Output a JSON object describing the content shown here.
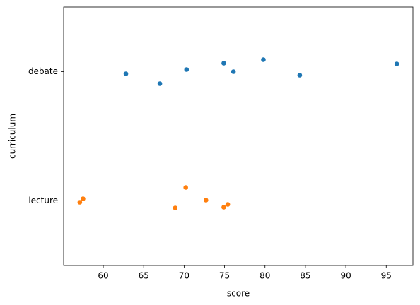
{
  "chart_data": {
    "type": "strip",
    "xlabel": "score",
    "ylabel": "curriculum",
    "categories": [
      "debate",
      "lecture"
    ],
    "series": [
      {
        "color": "#1f77b4",
        "values": [
          62.8,
          67.0,
          70.3,
          74.9,
          76.1,
          79.8,
          84.3,
          96.3
        ]
      },
      {
        "color": "#ff7f0e",
        "values": [
          57.1,
          57.5,
          68.9,
          70.2,
          72.7,
          74.9,
          75.4
        ]
      }
    ],
    "xlim": [
      55.1,
      98.3
    ],
    "xticks": [
      60,
      65,
      70,
      75,
      80,
      85,
      90,
      95
    ]
  }
}
